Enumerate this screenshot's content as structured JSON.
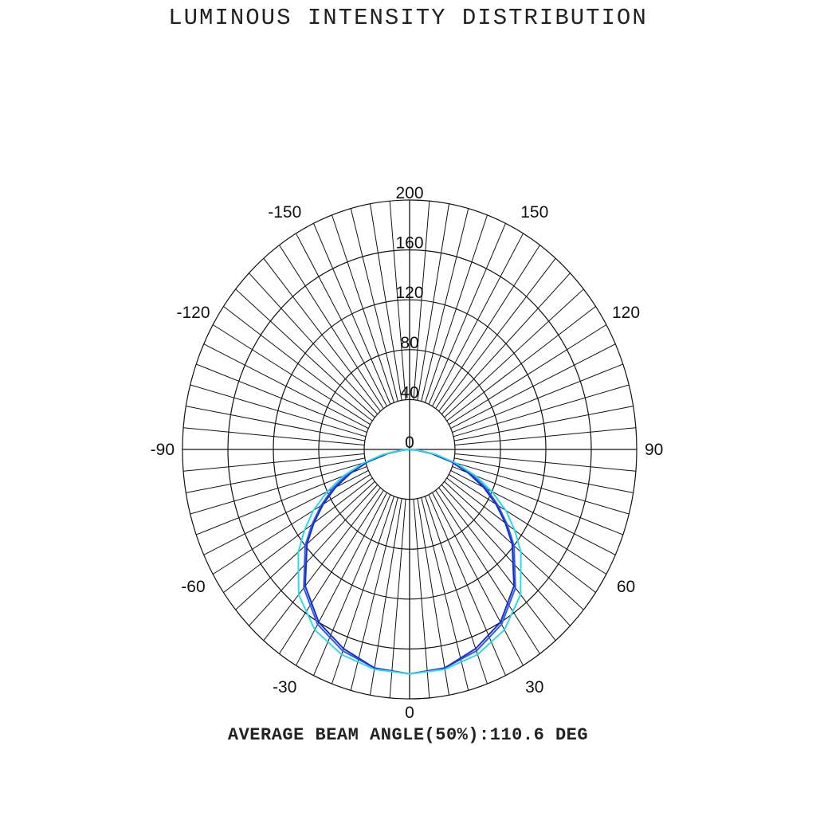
{
  "chart_data": {
    "type": "polar",
    "title": "LUMINOUS INTENSITY DISTRIBUTION",
    "footer": "AVERAGE BEAM ANGLE(50%):110.6 DEG",
    "radial_range": [
      0,
      200
    ],
    "radial_ticks": [
      "0",
      "40",
      "80",
      "120",
      "160",
      "200"
    ],
    "angle_labels": [
      "0",
      "30",
      "60",
      "90",
      "120",
      "150",
      "-30",
      "-60",
      "-90",
      "-120",
      "-150"
    ],
    "grid": true,
    "angle_step_minor": 5,
    "series": [
      {
        "color": "#2f5fe0",
        "angles": [
          0,
          10,
          20,
          30,
          40,
          50,
          55,
          60,
          65,
          70,
          75,
          80,
          85,
          90,
          95,
          100,
          105,
          110,
          115,
          120,
          125,
          130,
          135,
          140,
          145,
          150,
          155,
          160,
          165,
          170,
          175,
          180
        ],
        "values": [
          180,
          178,
          172,
          162,
          145,
          120,
          105,
          90,
          75,
          58,
          40,
          22,
          8,
          0,
          0,
          0,
          0,
          0,
          0,
          0,
          0,
          0,
          0,
          0,
          0,
          0,
          0,
          0,
          0,
          0,
          0,
          0
        ]
      },
      {
        "color": "#1a2fd0",
        "angles": [
          0,
          10,
          20,
          30,
          40,
          50,
          55,
          60,
          65,
          70,
          75,
          80,
          85,
          90
        ],
        "values": [
          180,
          178,
          170,
          160,
          143,
          118,
          103,
          88,
          72,
          55,
          38,
          20,
          6,
          0
        ]
      },
      {
        "color": "#30d8e8",
        "angles": [
          0,
          10,
          20,
          30,
          40,
          50,
          55,
          60,
          65,
          70,
          75,
          80,
          85,
          90
        ],
        "values": [
          180,
          179,
          175,
          167,
          152,
          128,
          113,
          98,
          80,
          62,
          42,
          24,
          8,
          0
        ]
      }
    ]
  }
}
